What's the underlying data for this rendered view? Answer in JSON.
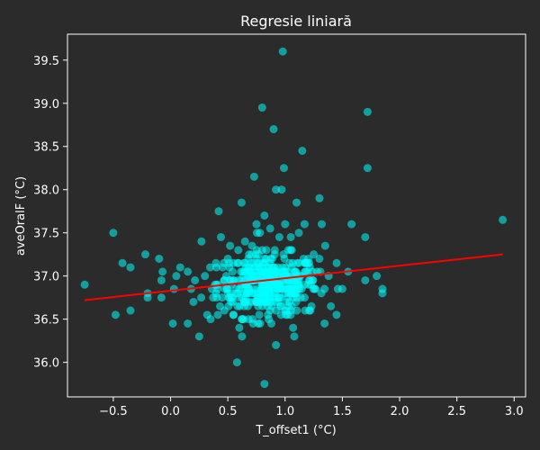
{
  "chart_data": {
    "type": "scatter",
    "title": "Regresie liniară",
    "xlabel": "T_offset1 (°C)",
    "ylabel": "aveOralF (°C)",
    "xlim": [
      -0.9,
      3.1
    ],
    "ylim": [
      35.6,
      39.8
    ],
    "xticks": [
      "−0.5",
      "0.0",
      "0.5",
      "1.0",
      "1.5",
      "2.0",
      "2.5",
      "3.0"
    ],
    "yticks": [
      "36.0",
      "36.5",
      "37.0",
      "37.5",
      "38.0",
      "38.5",
      "39.0",
      "39.5"
    ],
    "grid": false,
    "colors": {
      "points": "#00ffff",
      "regression": "#ff0000",
      "background": "#2b2b2b",
      "text": "#ffffff"
    },
    "points": [
      [
        -0.75,
        36.9
      ],
      [
        -0.5,
        37.5
      ],
      [
        -0.48,
        36.55
      ],
      [
        -0.42,
        37.15
      ],
      [
        -0.35,
        37.1
      ],
      [
        -0.35,
        36.6
      ],
      [
        -0.22,
        37.25
      ],
      [
        -0.2,
        36.8
      ],
      [
        -0.2,
        36.75
      ],
      [
        -0.1,
        37.2
      ],
      [
        -0.08,
        36.95
      ],
      [
        -0.08,
        36.75
      ],
      [
        -0.07,
        37.05
      ],
      [
        0.02,
        36.45
      ],
      [
        0.03,
        36.85
      ],
      [
        0.05,
        37.0
      ],
      [
        0.15,
        37.05
      ],
      [
        0.15,
        36.45
      ],
      [
        0.18,
        36.85
      ],
      [
        0.2,
        36.7
      ],
      [
        0.25,
        36.3
      ],
      [
        0.27,
        37.4
      ],
      [
        0.3,
        37.0
      ],
      [
        0.32,
        36.55
      ],
      [
        0.35,
        36.5
      ],
      [
        0.36,
        36.85
      ],
      [
        0.4,
        37.1
      ],
      [
        0.42,
        37.75
      ],
      [
        0.44,
        37.45
      ],
      [
        0.45,
        36.75
      ],
      [
        0.47,
        36.6
      ],
      [
        0.5,
        37.2
      ],
      [
        0.52,
        37.35
      ],
      [
        0.55,
        36.55
      ],
      [
        0.58,
        36.0
      ],
      [
        0.6,
        36.4
      ],
      [
        0.62,
        37.85
      ],
      [
        0.65,
        37.4
      ],
      [
        0.68,
        36.5
      ],
      [
        0.7,
        37.15
      ],
      [
        0.72,
        36.45
      ],
      [
        0.73,
        38.15
      ],
      [
        0.75,
        37.6
      ],
      [
        0.78,
        37.5
      ],
      [
        0.8,
        38.95
      ],
      [
        0.82,
        37.7
      ],
      [
        0.85,
        36.55
      ],
      [
        0.87,
        37.55
      ],
      [
        0.88,
        36.45
      ],
      [
        0.9,
        38.7
      ],
      [
        0.92,
        38.0
      ],
      [
        0.92,
        36.2
      ],
      [
        0.95,
        37.45
      ],
      [
        0.97,
        38.0
      ],
      [
        0.98,
        39.6
      ],
      [
        0.99,
        38.25
      ],
      [
        1.0,
        37.6
      ],
      [
        1.02,
        36.55
      ],
      [
        1.05,
        37.45
      ],
      [
        1.07,
        36.4
      ],
      [
        1.08,
        36.3
      ],
      [
        1.1,
        37.85
      ],
      [
        1.12,
        37.5
      ],
      [
        1.15,
        38.45
      ],
      [
        1.17,
        37.6
      ],
      [
        1.2,
        37.15
      ],
      [
        1.22,
        36.6
      ],
      [
        1.25,
        37.25
      ],
      [
        1.28,
        37.05
      ],
      [
        1.3,
        37.9
      ],
      [
        1.32,
        37.6
      ],
      [
        1.35,
        37.35
      ],
      [
        1.38,
        37.0
      ],
      [
        1.4,
        36.65
      ],
      [
        1.45,
        37.15
      ],
      [
        1.5,
        36.85
      ],
      [
        1.55,
        37.05
      ],
      [
        1.58,
        37.6
      ],
      [
        1.7,
        36.95
      ],
      [
        1.7,
        37.45
      ],
      [
        1.72,
        38.9
      ],
      [
        1.72,
        38.25
      ],
      [
        1.8,
        37.0
      ],
      [
        1.85,
        36.85
      ],
      [
        1.85,
        36.8
      ],
      [
        2.9,
        37.65
      ],
      [
        0.82,
        35.75
      ]
    ],
    "cluster": {
      "center_x": 0.85,
      "center_y": 36.9,
      "spread_x": 0.22,
      "spread_y": 0.18,
      "count": 420
    },
    "regression_line": {
      "x": [
        -0.75,
        2.9
      ],
      "y": [
        36.72,
        37.25
      ]
    }
  }
}
